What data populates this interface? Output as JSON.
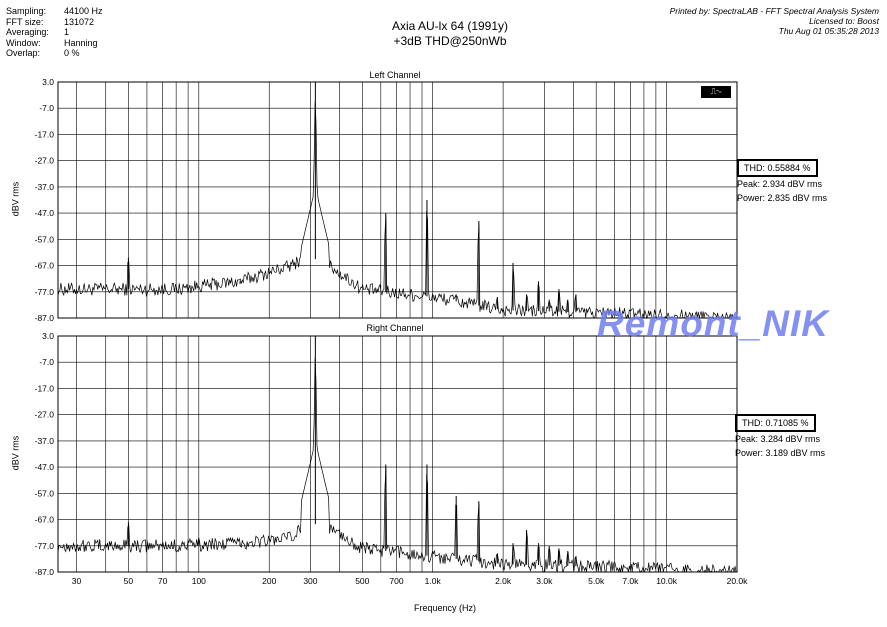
{
  "params": [
    {
      "key": "Sampling:",
      "value": "44100 Hz"
    },
    {
      "key": "FFT size:",
      "value": "131072"
    },
    {
      "key": "Averaging:",
      "value": "1"
    },
    {
      "key": "Window:",
      "value": "Hanning"
    },
    {
      "key": "Overlap:",
      "value": "0 %"
    }
  ],
  "header": {
    "title_line1": "Axia AU-lx 64 (1991y)",
    "title_line2": "+3dB THD@250nWb",
    "printed_by": "Printed by: SpectraLAB - FFT Spectral Analysis System",
    "licensed_to": "Licensed to: Boost",
    "timestamp": "Thu Aug 01 05:35:28 2013"
  },
  "watermark": "Remont_NIK",
  "toolbar_icon": "waveform-icon",
  "chart_data": [
    {
      "type": "line",
      "title": "Left Channel",
      "xlabel": "Frequency (Hz)",
      "ylabel": "dBV rms",
      "xscale": "log",
      "xlim": [
        25,
        20000
      ],
      "ylim": [
        -87,
        3
      ],
      "yticks": [
        "3.0",
        "-7.0",
        "-17.0",
        "-27.0",
        "-37.0",
        "-47.0",
        "-57.0",
        "-67.0",
        "-77.0",
        "-87.0"
      ],
      "grid": true,
      "thd_label": "THD: 0.55884 %",
      "peak_label": "Peak: 2.934 dBV rms",
      "power_label": "Power: 2.835 dBV rms",
      "series": [
        {
          "floor": [
            [
              25,
              -76
            ],
            [
              40,
              -76
            ],
            [
              80,
              -76
            ],
            [
              150,
              -73
            ],
            [
              250,
              -67
            ],
            [
              290,
              -63
            ],
            [
              360,
              -67
            ],
            [
              500,
              -76
            ],
            [
              1000,
              -79
            ],
            [
              2000,
              -84
            ],
            [
              5000,
              -85
            ],
            [
              10000,
              -86
            ],
            [
              20000,
              -87
            ]
          ],
          "peaks": [
            [
              50,
              -64
            ],
            [
              100,
              -75
            ],
            [
              150,
              -74
            ],
            [
              200,
              -70
            ],
            [
              315,
              3
            ],
            [
              630,
              -47
            ],
            [
              945,
              -42
            ],
            [
              1260,
              -78
            ],
            [
              1575,
              -50
            ],
            [
              1890,
              -79
            ],
            [
              2205,
              -66
            ],
            [
              2520,
              -78
            ],
            [
              2835,
              -73
            ],
            [
              3150,
              -80
            ],
            [
              3465,
              -76
            ],
            [
              3780,
              -80
            ],
            [
              4095,
              -78
            ]
          ]
        }
      ]
    },
    {
      "type": "line",
      "title": "Right Channel",
      "xlabel": "Frequency (Hz)",
      "ylabel": "dBV rms",
      "xscale": "log",
      "xlim": [
        25,
        20000
      ],
      "ylim": [
        -87,
        3
      ],
      "yticks": [
        "3.0",
        "-7.0",
        "-17.0",
        "-27.0",
        "-37.0",
        "-47.0",
        "-57.0",
        "-67.0",
        "-77.0",
        "-87.0"
      ],
      "grid": true,
      "thd_label": "THD: 0.71085 %",
      "peak_label": "Peak: 3.284 dBV rms",
      "power_label": "Power: 3.189 dBV rms",
      "series": [
        {
          "floor": [
            [
              25,
              -77
            ],
            [
              40,
              -77
            ],
            [
              80,
              -77
            ],
            [
              150,
              -76
            ],
            [
              250,
              -74
            ],
            [
              290,
              -68
            ],
            [
              360,
              -70
            ],
            [
              500,
              -78
            ],
            [
              1000,
              -81
            ],
            [
              2000,
              -84
            ],
            [
              5000,
              -85
            ],
            [
              10000,
              -86
            ],
            [
              20000,
              -87
            ]
          ],
          "peaks": [
            [
              50,
              -68
            ],
            [
              100,
              -74
            ],
            [
              150,
              -77
            ],
            [
              200,
              -75
            ],
            [
              315,
              3
            ],
            [
              630,
              -46
            ],
            [
              945,
              -46
            ],
            [
              1260,
              -58
            ],
            [
              1575,
              -60
            ],
            [
              1890,
              -80
            ],
            [
              2205,
              -76
            ],
            [
              2520,
              -71
            ],
            [
              2835,
              -76
            ],
            [
              3150,
              -77
            ],
            [
              3465,
              -78
            ],
            [
              3780,
              -79
            ],
            [
              4095,
              -81
            ]
          ]
        }
      ]
    }
  ],
  "x_ticks": [
    {
      "v": 30,
      "label": "30"
    },
    {
      "v": 50,
      "label": "50"
    },
    {
      "v": 70,
      "label": "70"
    },
    {
      "v": 100,
      "label": "100"
    },
    {
      "v": 200,
      "label": "200"
    },
    {
      "v": 300,
      "label": "300"
    },
    {
      "v": 500,
      "label": "500"
    },
    {
      "v": 700,
      "label": "700"
    },
    {
      "v": 1000,
      "label": "1.0k"
    },
    {
      "v": 2000,
      "label": "2.0k"
    },
    {
      "v": 3000,
      "label": "3.0k"
    },
    {
      "v": 5000,
      "label": "5.0k"
    },
    {
      "v": 7000,
      "label": "7.0k"
    },
    {
      "v": 10000,
      "label": "10.0k"
    },
    {
      "v": 20000,
      "label": "20.0k"
    }
  ]
}
